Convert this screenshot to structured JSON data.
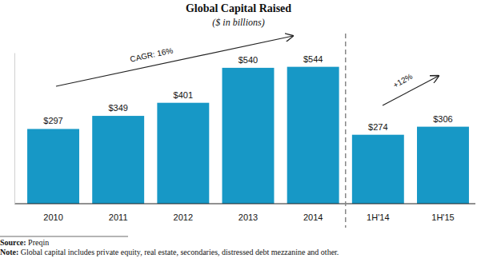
{
  "chart_data": {
    "type": "bar",
    "title": "Global Capital Raised",
    "subtitle": "($ in billions)",
    "categories": [
      "2010",
      "2011",
      "2012",
      "2013",
      "2014",
      "1H'14",
      "1H'15"
    ],
    "values": [
      297,
      349,
      401,
      540,
      544,
      274,
      306
    ],
    "value_labels": [
      "$297",
      "$349",
      "$401",
      "$540",
      "$544",
      "$274",
      "$306"
    ],
    "data_labels": true,
    "color": "#1798c6",
    "ylim": [
      0,
      600
    ],
    "tick_labels": "x",
    "grid": false,
    "annotations": [
      "CAGR: 16%",
      "+12%"
    ],
    "notes": [
      "Source: Preqin",
      "Note: Global capital includes private equity, real estate, secondaries, distressed debt mezzanine and other."
    ]
  }
}
